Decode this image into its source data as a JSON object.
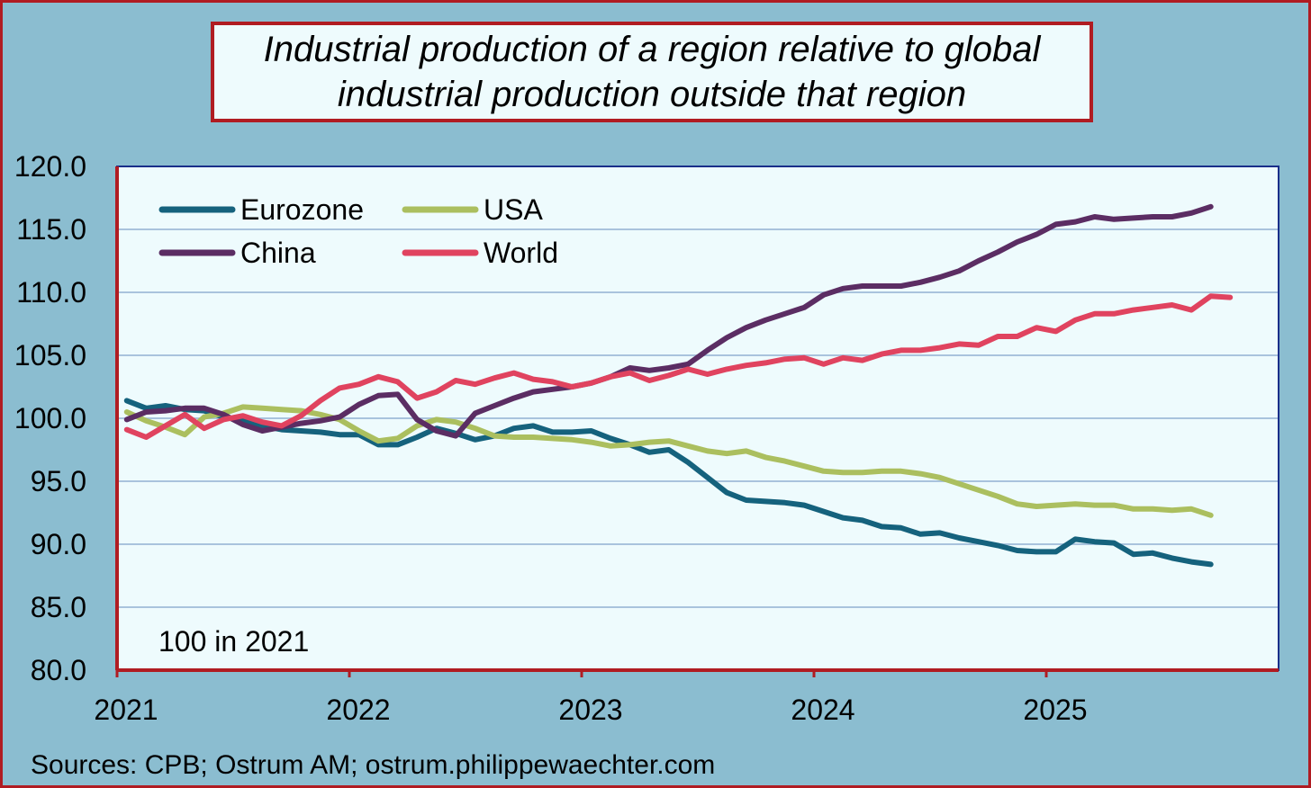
{
  "title_lines": [
    "Industrial production of a region relative to global",
    "industrial production outside that region"
  ],
  "note": "100 in 2021",
  "source": "Sources: CPB; Ostrum AM; ostrum.philippewaechter.com",
  "chart_data": {
    "type": "line",
    "title": "Industrial production of a region relative to global industrial production outside that region",
    "xlabel": "",
    "ylabel": "",
    "ylim": [
      80,
      120
    ],
    "y_ticks": [
      "120.0",
      "115.0",
      "110.0",
      "105.0",
      "100.0",
      "95.0",
      "90.0",
      "85.0",
      "80.0"
    ],
    "y_tick_values": [
      120,
      115,
      110,
      105,
      100,
      95,
      90,
      85,
      80
    ],
    "x_ticks": [
      "2021",
      "2022",
      "2023",
      "2024",
      "2025"
    ],
    "x_tick_values": [
      2021,
      2022,
      2023,
      2024,
      2025
    ],
    "xlim": [
      2021,
      2026
    ],
    "x_start": 2021.0417,
    "x_step": 0.08333,
    "grid": "horizontal",
    "legend_position": "top-left",
    "colors": {
      "plot_bg": "#eefbfd",
      "outer_bg": "#8bbdd0",
      "frame": "#b01c22",
      "axis": "#1a2f8a",
      "grid": "#a9c3dd"
    },
    "series": [
      {
        "name": "Eurozone",
        "color": "#15627d",
        "values": [
          101.4,
          100.8,
          101.0,
          100.7,
          100.6,
          100.1,
          99.8,
          99.4,
          99.1,
          99.0,
          98.9,
          98.7,
          98.7,
          97.9,
          97.9,
          98.5,
          99.2,
          98.8,
          98.3,
          98.6,
          99.2,
          99.4,
          98.9,
          98.9,
          99.0,
          98.4,
          97.9,
          97.3,
          97.5,
          96.5,
          95.3,
          94.1,
          93.5,
          93.4,
          93.3,
          93.1,
          92.6,
          92.1,
          91.9,
          91.4,
          91.3,
          90.8,
          90.9,
          90.5,
          90.2,
          89.9,
          89.5,
          89.4,
          89.4,
          90.4,
          90.2,
          90.1,
          89.2,
          89.3,
          88.9,
          88.6,
          88.4
        ]
      },
      {
        "name": "USA",
        "color": "#abbf5f",
        "values": [
          100.5,
          99.8,
          99.3,
          98.7,
          100.1,
          100.4,
          100.9,
          100.8,
          100.7,
          100.6,
          100.3,
          99.9,
          99.0,
          98.2,
          98.4,
          99.4,
          99.9,
          99.7,
          99.2,
          98.6,
          98.5,
          98.5,
          98.4,
          98.3,
          98.1,
          97.8,
          97.9,
          98.1,
          98.2,
          97.8,
          97.4,
          97.2,
          97.4,
          96.9,
          96.6,
          96.2,
          95.8,
          95.7,
          95.7,
          95.8,
          95.8,
          95.6,
          95.3,
          94.8,
          94.3,
          93.8,
          93.2,
          93.0,
          93.1,
          93.2,
          93.1,
          93.1,
          92.8,
          92.8,
          92.7,
          92.8,
          92.3
        ]
      },
      {
        "name": "China",
        "color": "#5b2d63",
        "values": [
          99.9,
          100.5,
          100.6,
          100.8,
          100.8,
          100.3,
          99.5,
          99.0,
          99.3,
          99.6,
          99.8,
          100.1,
          101.1,
          101.8,
          101.9,
          99.9,
          99.0,
          98.6,
          100.4,
          101.0,
          101.6,
          102.1,
          102.3,
          102.5,
          102.8,
          103.3,
          104.0,
          103.8,
          104.0,
          104.3,
          105.4,
          106.4,
          107.2,
          107.8,
          108.3,
          108.8,
          109.8,
          110.3,
          110.5,
          110.5,
          110.5,
          110.8,
          111.2,
          111.7,
          112.5,
          113.2,
          114.0,
          114.6,
          115.4,
          115.6,
          116.0,
          115.8,
          115.9,
          116.0,
          116.0,
          116.3,
          116.8
        ]
      },
      {
        "name": "World",
        "color": "#e0435f",
        "values": [
          99.1,
          98.5,
          99.4,
          100.3,
          99.2,
          99.9,
          100.2,
          99.7,
          99.4,
          100.2,
          101.4,
          102.4,
          102.7,
          103.3,
          102.9,
          101.6,
          102.1,
          103.0,
          102.7,
          103.2,
          103.6,
          103.1,
          102.9,
          102.5,
          102.8,
          103.3,
          103.6,
          103.0,
          103.4,
          103.9,
          103.5,
          103.9,
          104.2,
          104.4,
          104.7,
          104.8,
          104.3,
          104.8,
          104.6,
          105.1,
          105.4,
          105.4,
          105.6,
          105.9,
          105.8,
          106.5,
          106.5,
          107.2,
          106.9,
          107.8,
          108.3,
          108.3,
          108.6,
          108.8,
          109.0,
          108.6,
          109.7,
          109.6
        ]
      }
    ]
  }
}
